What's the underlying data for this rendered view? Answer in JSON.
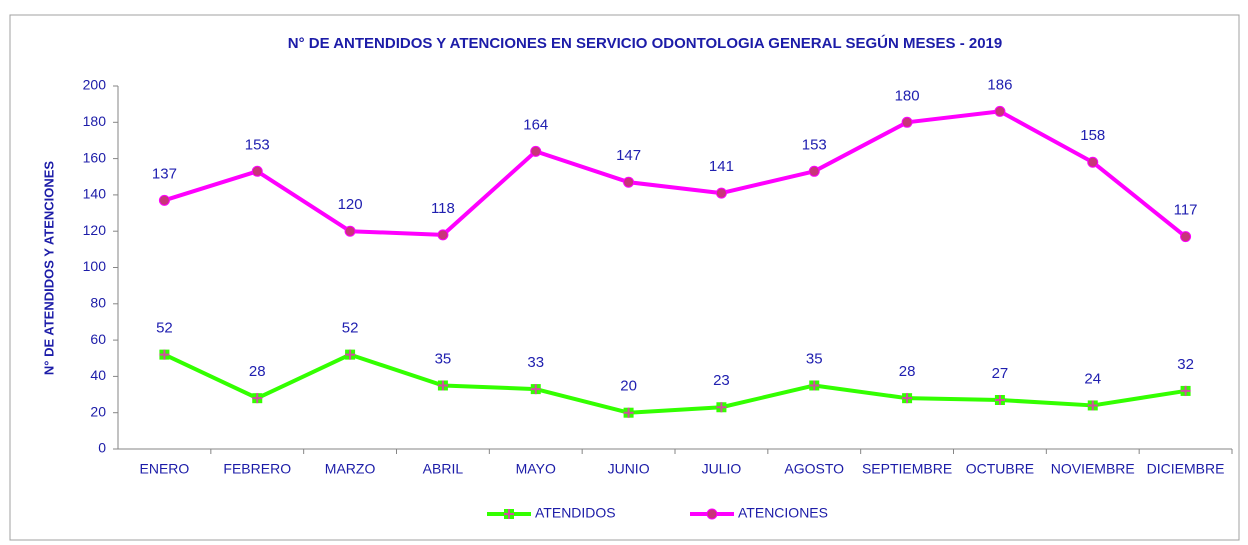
{
  "chart_data": {
    "type": "line",
    "title": "N° DE ANTENDIDOS Y ATENCIONES EN SERVICIO ODONTOLOGIA GENERAL SEGÚN MESES  - 2019",
    "y_label": "N° DE ATENDIDOS Y ATENCIONES",
    "categories": [
      "ENERO",
      "FEBRERO",
      "MARZO",
      "ABRIL",
      "MAYO",
      "JUNIO",
      "JULIO",
      "AGOSTO",
      "SEPTIEMBRE",
      "OCTUBRE",
      "NOVIEMBRE",
      "DICIEMBRE"
    ],
    "series": [
      {
        "name": "ATENDIDOS",
        "color": "#33ff00",
        "marker_color": "#d04fa0",
        "values": [
          52,
          28,
          52,
          35,
          33,
          20,
          23,
          35,
          28,
          27,
          24,
          32
        ]
      },
      {
        "name": "ATENCIONES",
        "color": "#ff00ff",
        "marker_color": "#c8347a",
        "values": [
          137,
          153,
          120,
          118,
          164,
          147,
          141,
          153,
          180,
          186,
          158,
          117
        ]
      }
    ],
    "ylim": [
      0,
      200
    ],
    "yticks": [
      0,
      20,
      40,
      60,
      80,
      100,
      120,
      140,
      160,
      180,
      200
    ],
    "grid": false,
    "legend": "bottom"
  }
}
